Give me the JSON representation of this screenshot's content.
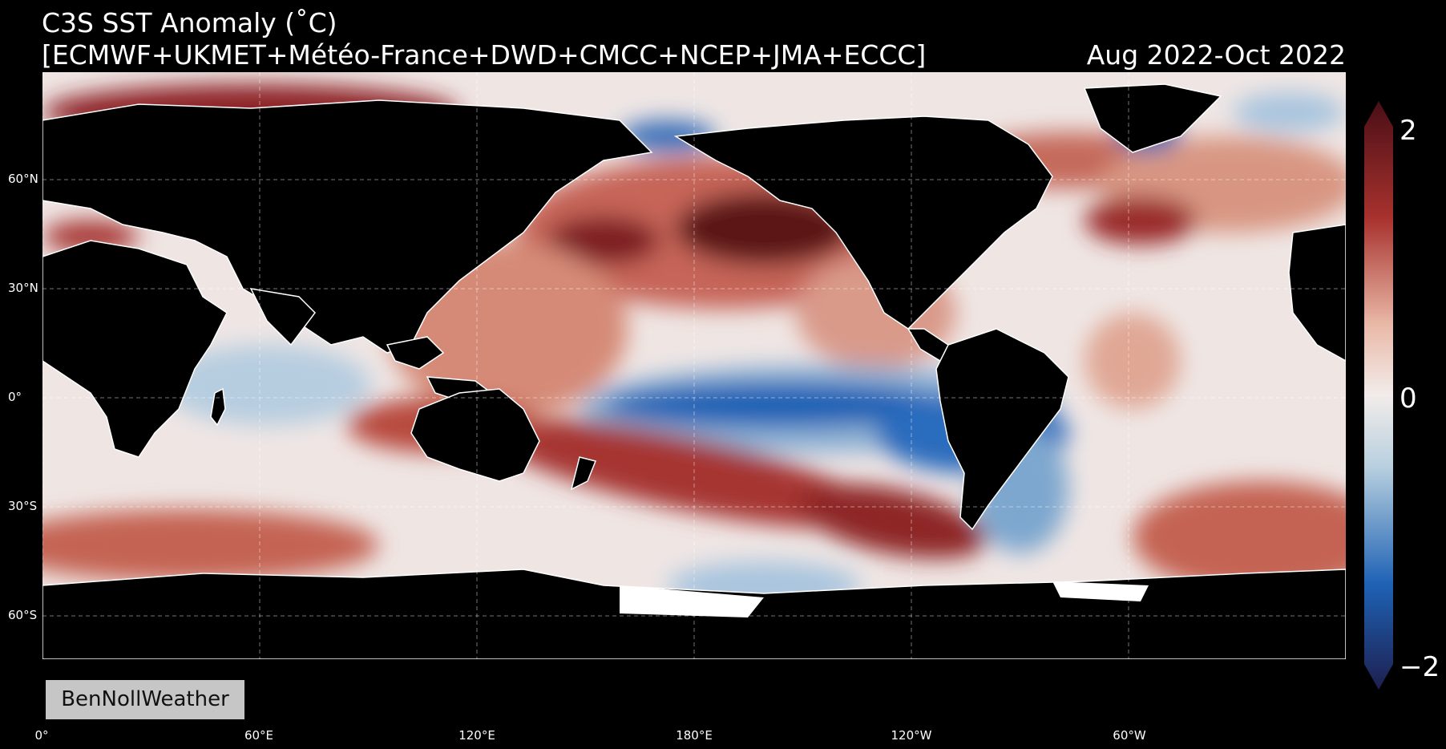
{
  "title": {
    "line1": "C3S SST Anomaly (˚C)",
    "line2": "[ECMWF+UKMET+Météo-France+DWD+CMCC+NCEP+JMA+ECCC]",
    "period": "Aug 2022-Oct 2022"
  },
  "lat_labels": [
    "60°N",
    "30°N",
    "0°",
    "30°S",
    "60°S"
  ],
  "lon_labels": [
    "0°",
    "60°E",
    "120°E",
    "180°E",
    "120°W",
    "60°W"
  ],
  "colorbar": {
    "max_label": "2",
    "mid_label": "0",
    "min_label": "−2",
    "range": [
      -2,
      2
    ],
    "colors": {
      "dark_red": "#4a0e16",
      "red": "#a8322e",
      "light_red": "#e9b9a8",
      "white": "#f2ecea",
      "light_blue": "#b9d0df",
      "blue": "#1f62b5",
      "dark_blue": "#1d1f4f"
    }
  },
  "watermark": "BenNollWeather",
  "colors": {
    "background": "#000000",
    "land": "#000000",
    "coastline": "#ffffff"
  }
}
